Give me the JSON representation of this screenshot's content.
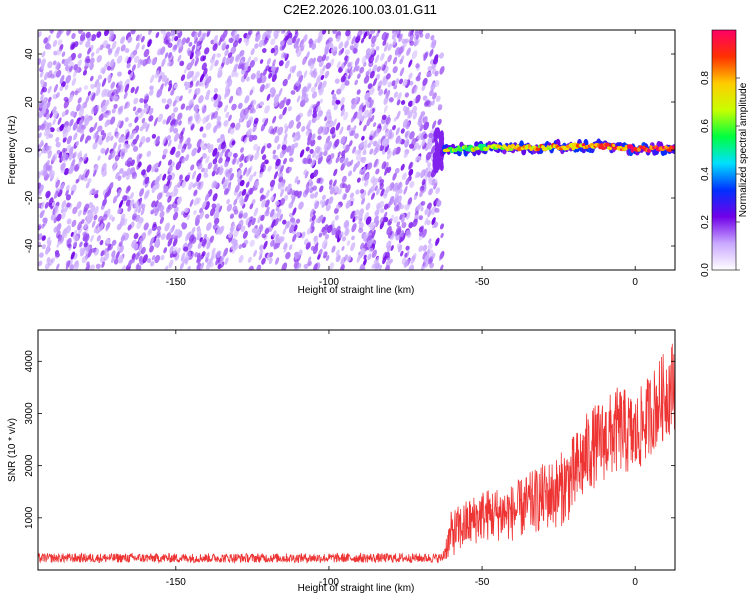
{
  "figure_title": "C2E2.2026.100.03.01.G11",
  "chart_data": [
    {
      "type": "heatmap",
      "title": "C2E2.2026.100.03.01.G11",
      "xlabel": "Height of straight line (km)",
      "ylabel": "Frequency (Hz)",
      "xlim": [
        -195,
        13
      ],
      "ylim": [
        -50,
        50
      ],
      "x_ticks": [
        -150,
        -100,
        -50,
        0
      ],
      "x_tick_labels": [
        "-150",
        "-100",
        "-50",
        "0"
      ],
      "y_ticks": [
        -40,
        -20,
        0,
        20,
        40
      ],
      "y_tick_labels": [
        "-40",
        "-20",
        "0",
        "20",
        "40"
      ],
      "noise_region_x": [
        -195,
        -63
      ],
      "signal_track": {
        "x": [
          -63,
          -50,
          -40,
          -30,
          -20,
          -10,
          0,
          13
        ],
        "frequency": [
          0,
          1,
          1,
          1,
          1.5,
          1.5,
          0.5,
          0.5
        ]
      },
      "colorbar": {
        "label": "Normalized spectral amplitude",
        "range": [
          0.0,
          1.0
        ],
        "ticks": [
          0.0,
          0.2,
          0.4,
          0.6,
          0.8
        ],
        "tick_labels": [
          "0.0",
          "0.2",
          "0.4",
          "0.6",
          "0.8"
        ],
        "colormap": [
          "#ffffff",
          "#c9a8ff",
          "#7000e8",
          "#0030ff",
          "#00e0ff",
          "#00ff40",
          "#c8ff00",
          "#ffcc00",
          "#ff3000",
          "#ff0066"
        ]
      }
    },
    {
      "type": "line",
      "title": "",
      "xlabel": "Height of straight line (km)",
      "ylabel": "SNR (10 * v/v)",
      "xlim": [
        -195,
        13
      ],
      "ylim": [
        0,
        4600
      ],
      "x_ticks": [
        -150,
        -100,
        -50,
        0
      ],
      "x_tick_labels": [
        "-150",
        "-100",
        "-50",
        "0"
      ],
      "y_ticks": [
        1000,
        2000,
        3000,
        4000
      ],
      "y_tick_labels": [
        "1000",
        "2000",
        "3000",
        "4000"
      ],
      "series": [
        {
          "name": "SNR",
          "color": "#ee3333",
          "envelope_x": [
            -195,
            -63,
            -60,
            -50,
            -40,
            -30,
            -25,
            -20,
            -15,
            -10,
            -5,
            0,
            5,
            13
          ],
          "envelope_mean": [
            230,
            230,
            700,
            1050,
            1100,
            1400,
            1500,
            1800,
            2300,
            2500,
            2700,
            2550,
            3000,
            3600
          ],
          "envelope_spread": [
            90,
            90,
            450,
            500,
            550,
            650,
            700,
            800,
            800,
            800,
            850,
            800,
            800,
            900
          ]
        }
      ]
    }
  ]
}
